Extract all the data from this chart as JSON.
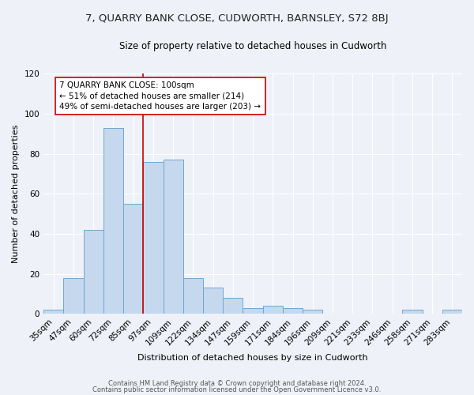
{
  "title": "7, QUARRY BANK CLOSE, CUDWORTH, BARNSLEY, S72 8BJ",
  "subtitle": "Size of property relative to detached houses in Cudworth",
  "xlabel": "Distribution of detached houses by size in Cudworth",
  "ylabel": "Number of detached properties",
  "categories": [
    "35sqm",
    "47sqm",
    "60sqm",
    "72sqm",
    "85sqm",
    "97sqm",
    "109sqm",
    "122sqm",
    "134sqm",
    "147sqm",
    "159sqm",
    "171sqm",
    "184sqm",
    "196sqm",
    "209sqm",
    "221sqm",
    "233sqm",
    "246sqm",
    "258sqm",
    "271sqm",
    "283sqm"
  ],
  "values": [
    2,
    18,
    42,
    93,
    55,
    76,
    77,
    18,
    13,
    8,
    3,
    4,
    3,
    2,
    0,
    0,
    0,
    0,
    2,
    0,
    2
  ],
  "bar_color": "#c5d8ed",
  "bar_edge_color": "#6fa8d0",
  "background_color": "#eef2f8",
  "ylim": [
    0,
    120
  ],
  "yticks": [
    0,
    20,
    40,
    60,
    80,
    100,
    120
  ],
  "property_line_x": 4.5,
  "property_line_color": "#cc0000",
  "annotation_line1": "7 QUARRY BANK CLOSE: 100sqm",
  "annotation_line2": "← 51% of detached houses are smaller (214)",
  "annotation_line3": "49% of semi-detached houses are larger (203) →",
  "footer_line1": "Contains HM Land Registry data © Crown copyright and database right 2024.",
  "footer_line2": "Contains public sector information licensed under the Open Government Licence v3.0.",
  "title_fontsize": 9.5,
  "subtitle_fontsize": 8.5,
  "axis_label_fontsize": 8,
  "tick_fontsize": 7.5,
  "annotation_fontsize": 7.5,
  "footer_fontsize": 6
}
